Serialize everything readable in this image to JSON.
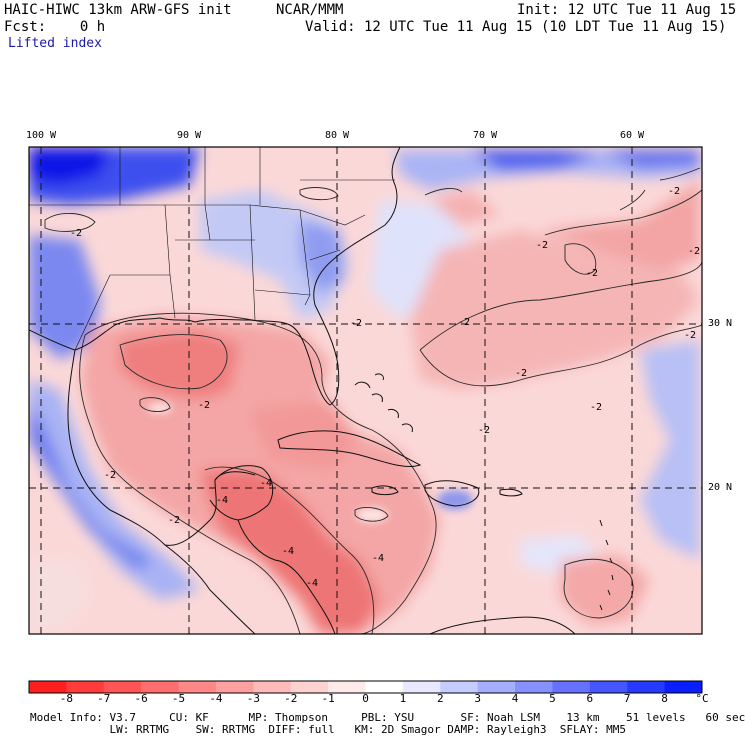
{
  "header": {
    "model": "HAIC-HIWC 13km ARW-GFS init",
    "org": "NCAR/MMM",
    "init": "Init: 12 UTC Tue 11 Aug 15",
    "fcst": "Fcst:    0 h",
    "valid": "Valid: 12 UTC Tue 11 Aug 15 (10 LDT Tue 11 Aug 15)",
    "field": "Lifted index"
  },
  "map": {
    "lon_labels": [
      "100 W",
      "90 W",
      "80 W",
      "70 W",
      "60 W"
    ],
    "lat_labels": [
      "30 N",
      "20 N"
    ],
    "contour_labels": [
      "-2",
      "-2",
      "-2",
      "-2",
      "-2",
      "-2",
      "-2",
      "-2",
      "-2",
      "-2",
      "-2",
      "-2",
      "-2",
      "-2",
      "-4",
      "-4",
      "-4",
      "-4",
      "-4"
    ],
    "colors": {
      "strong_unstable": "#f07070",
      "unstable": "#f5a0a0",
      "slight_unstable": "#fbd3d3",
      "neutral": "#fff5f5",
      "stable": "#c8d0f8",
      "very_stable": "#3c50f0",
      "extreme_stable": "#0a14e6"
    }
  },
  "colorbar": {
    "ticks": [
      "-8",
      "-7",
      "-6",
      "-5",
      "-4",
      "-3",
      "-2",
      "-1",
      "0",
      "1",
      "2",
      "3",
      "4",
      "5",
      "6",
      "7",
      "8"
    ],
    "unit": "°C",
    "colors": [
      "#ff1f1f",
      "#ff3c3c",
      "#ff5555",
      "#ff6e6e",
      "#ff8787",
      "#ffa0a0",
      "#ffbaba",
      "#ffd2d2",
      "#ffeaea",
      "#ffffff",
      "#e6e9ff",
      "#c6ccff",
      "#a6afff",
      "#8690ff",
      "#6672ff",
      "#4656ff",
      "#263aff",
      "#0a1fff"
    ]
  },
  "footer": {
    "line1": "Model Info: V3.7     CU: KF      MP: Thompson     PBL: YSU       SF: Noah LSM    13 km    51 levels   60 sec",
    "line2": "            LW: RRTMG    SW: RRTMG  DIFF: full   KM: 2D Smagor DAMP: Rayleigh3  SFLAY: MM5"
  }
}
